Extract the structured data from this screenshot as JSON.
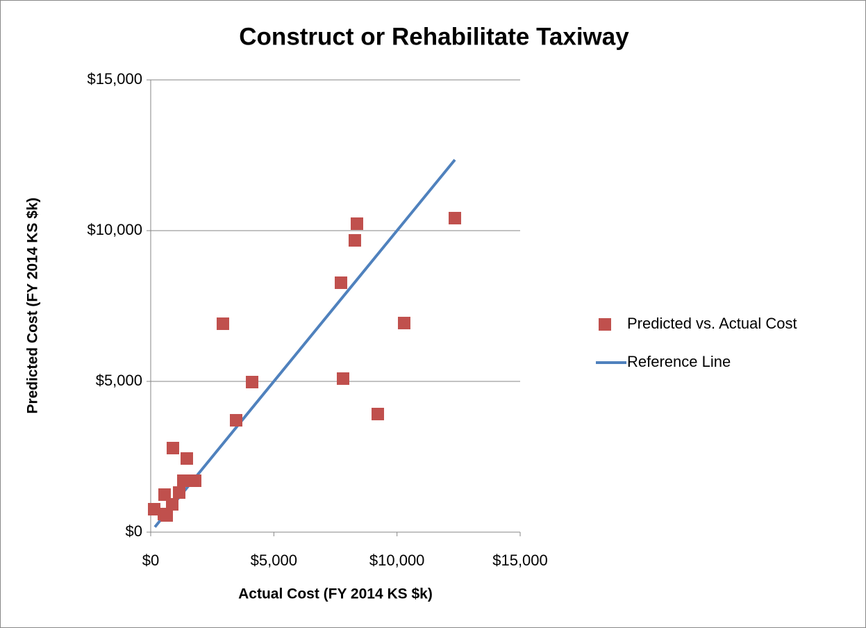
{
  "chart_data": {
    "type": "scatter",
    "title": "Construct or Rehabilitate Taxiway",
    "x_label": "Actual Cost (FY 2014 KS $k)",
    "y_label": "Predicted Cost (FY 2014 KS $k)",
    "xlim": [
      0,
      15000
    ],
    "ylim": [
      0,
      15000
    ],
    "xticks": [
      {
        "value": 0,
        "label": "$0"
      },
      {
        "value": 5000,
        "label": "$5,000"
      },
      {
        "value": 10000,
        "label": "$10,000"
      },
      {
        "value": 15000,
        "label": "$15,000"
      }
    ],
    "yticks": [
      {
        "value": 0,
        "label": "$0"
      },
      {
        "value": 5000,
        "label": "$5,000"
      },
      {
        "value": 10000,
        "label": "$10,000"
      },
      {
        "value": 15000,
        "label": "$15,000"
      }
    ],
    "grid": true,
    "legend": "right",
    "series": [
      {
        "name": "Predicted vs. Actual Cost",
        "type": "scatter",
        "color": "#c0504d",
        "x": [
          141,
          564,
          536,
          649,
          874,
          902,
          1156,
          1325,
          1466,
          1805,
          2932,
          3468,
          4117,
          7726,
          7810,
          8289,
          8374,
          9220,
          10291,
          12350
        ],
        "values": [
          760,
          1244,
          600,
          553,
          922,
          2788,
          1313,
          1705,
          2442,
          1705,
          6912,
          3710,
          4977,
          8272,
          5092,
          9677,
          10230,
          3917,
          6935,
          10415
        ]
      },
      {
        "name": "Reference Line",
        "type": "line",
        "color": "#4f81bd",
        "x": [
          170,
          12350
        ],
        "values": [
          170,
          12350
        ]
      }
    ]
  }
}
